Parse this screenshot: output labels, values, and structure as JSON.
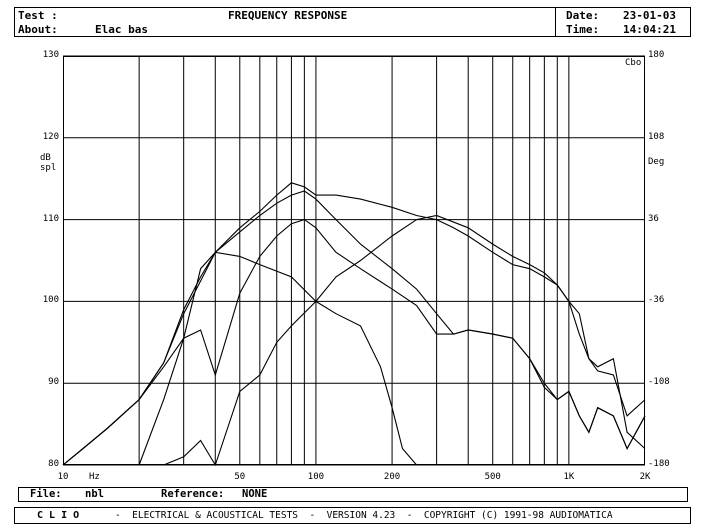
{
  "header": {
    "test_label": "Test :",
    "title": "FREQUENCY RESPONSE",
    "about_label": "About:",
    "about_value": "Elac bas",
    "date_label": "Date:",
    "date_value": "23-01-03",
    "time_label": "Time:",
    "time_value": "14:04:21"
  },
  "chart_data": {
    "type": "line",
    "title": "FREQUENCY RESPONSE",
    "x_scale": "log",
    "xlim": [
      10,
      2000
    ],
    "ylim": [
      80,
      130
    ],
    "y2lim": [
      -180,
      180
    ],
    "x_ticks": [
      "10",
      "50",
      "100",
      "200",
      "500",
      "1K",
      "2K"
    ],
    "x_tick_values": [
      10,
      50,
      100,
      200,
      500,
      1000,
      2000
    ],
    "x_unit": "Hz",
    "y_ticks": [
      130,
      120,
      110,
      100,
      90,
      80
    ],
    "y_label_line1": "dB",
    "y_label_line2": "spl",
    "y2_ticks": [
      180,
      108,
      36,
      -36,
      -108,
      -180
    ],
    "y2_label": "Deg",
    "corner_label": "Cbo",
    "grid": true,
    "series": [
      {
        "x": [
          10,
          12,
          15,
          20,
          25,
          30,
          35,
          40,
          50,
          60,
          70,
          80,
          90,
          100,
          120,
          150,
          200,
          250,
          300,
          350,
          400,
          500,
          600,
          700,
          800,
          900,
          1000,
          1100,
          1200,
          1300,
          1500,
          1700,
          2000
        ],
        "y": [
          80,
          82,
          84.5,
          88,
          92.5,
          99,
          103,
          106,
          109,
          111,
          113,
          114.5,
          114,
          113,
          113,
          112.5,
          111.5,
          110.5,
          110,
          109,
          108,
          106,
          104.5,
          104,
          103,
          102,
          100,
          96,
          93,
          91.5,
          91,
          86,
          88
        ]
      },
      {
        "x": [
          10,
          12,
          15,
          20,
          25,
          30,
          35,
          40,
          50,
          60,
          70,
          80,
          90,
          100,
          120,
          150,
          200,
          250,
          300,
          350,
          400,
          500,
          600,
          700,
          800,
          900,
          1000,
          1100,
          1200,
          1300,
          1500,
          1700,
          2000
        ],
        "y": [
          80,
          82,
          84.5,
          88,
          92.5,
          98.5,
          102.5,
          106,
          108.5,
          110.5,
          112,
          113,
          113.5,
          112.5,
          110,
          107,
          104,
          101.5,
          98.5,
          96,
          96.5,
          96,
          95.5,
          93,
          90,
          88,
          89,
          86,
          84,
          87,
          86,
          82,
          86
        ]
      },
      {
        "x": [
          10,
          12,
          15,
          20,
          25,
          30,
          35,
          40,
          50,
          60,
          70,
          80,
          90,
          100,
          120,
          150,
          200,
          250,
          300,
          350,
          400,
          500,
          600,
          700,
          800,
          900,
          1000,
          1100,
          1200,
          1300,
          1500,
          1700,
          2000
        ],
        "y": [
          80,
          82,
          84.5,
          88,
          92,
          95.5,
          96.5,
          91,
          101,
          105.5,
          108,
          109.5,
          110,
          109,
          106,
          104,
          101.5,
          99.5,
          96,
          96,
          96.5,
          96,
          95.5,
          93,
          89.5,
          88,
          89,
          86,
          84,
          87,
          86,
          82,
          86
        ]
      },
      {
        "x": [
          20,
          25,
          30,
          35,
          40,
          50,
          60,
          80,
          100,
          120,
          150,
          180,
          200,
          220,
          250
        ],
        "y": [
          80,
          88,
          95.5,
          104,
          106,
          105.5,
          104.5,
          103,
          100,
          98.5,
          97,
          92,
          87,
          82,
          79
        ]
      },
      {
        "x": [
          25,
          30,
          35,
          40,
          50,
          60,
          70,
          80,
          100,
          120,
          150,
          200,
          250,
          300,
          400,
          500,
          600,
          700,
          800,
          900,
          1000,
          1100,
          1200,
          1300,
          1500,
          1700,
          2000
        ],
        "y": [
          80,
          81,
          83,
          80,
          89,
          91,
          95,
          97,
          100,
          103,
          105,
          108,
          110,
          110.5,
          109,
          107,
          105.5,
          104.5,
          103.5,
          102,
          100,
          98.5,
          93,
          92,
          93,
          84,
          82
        ]
      }
    ]
  },
  "file_bar": {
    "file_label": "File:",
    "file_value": "nbl",
    "reference_label": "Reference:",
    "reference_value": "NONE"
  },
  "footer": {
    "brand": "C L I O",
    "text": "-  ELECTRICAL & ACOUSTICAL TESTS  -  VERSION 4.23  -  COPYRIGHT (C) 1991-98 AUDIOMATICA"
  }
}
